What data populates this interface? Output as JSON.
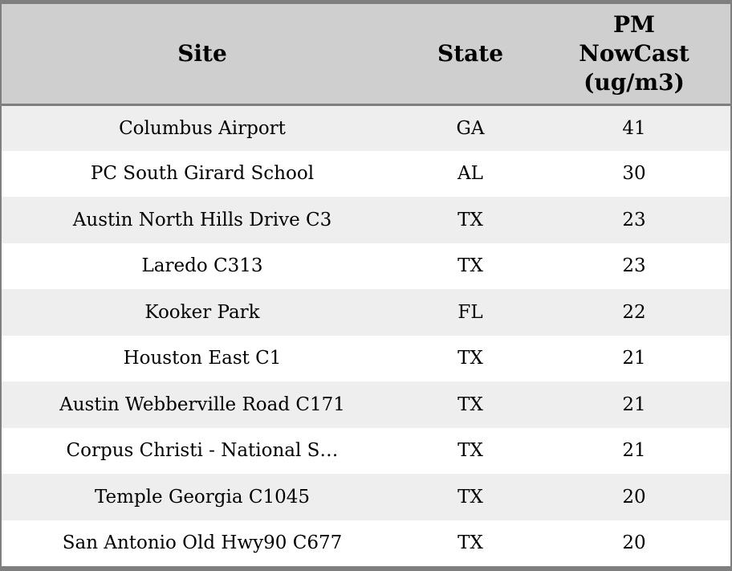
{
  "colors": {
    "border": "#7f7f7f",
    "header_bg": "#cfcfcf",
    "row_alt_bg": "#eeeeee",
    "row_bg": "#ffffff",
    "text": "#000000"
  },
  "table": {
    "columns": [
      {
        "id": "site",
        "label": "Site"
      },
      {
        "id": "state",
        "label": "State"
      },
      {
        "id": "pm_nowcast",
        "label": "PM\nNowCast\n(ug/m3)"
      }
    ],
    "rows": [
      {
        "site": "Columbus Airport",
        "state": "GA",
        "pm": "41"
      },
      {
        "site": "PC South Girard School",
        "state": "AL",
        "pm": "30"
      },
      {
        "site": "Austin North Hills Drive C3",
        "state": "TX",
        "pm": "23"
      },
      {
        "site": "Laredo C313",
        "state": "TX",
        "pm": "23"
      },
      {
        "site": "Kooker Park",
        "state": "FL",
        "pm": "22"
      },
      {
        "site": "Houston East C1",
        "state": "TX",
        "pm": "21"
      },
      {
        "site": "Austin Webberville Road C171",
        "state": "TX",
        "pm": "21"
      },
      {
        "site": "Corpus Christi - National S…",
        "state": "TX",
        "pm": "21"
      },
      {
        "site": "Temple Georgia C1045",
        "state": "TX",
        "pm": "20"
      },
      {
        "site": "San Antonio Old Hwy90 C677",
        "state": "TX",
        "pm": "20"
      }
    ]
  },
  "chart_data": {
    "type": "table",
    "title": "",
    "categories": [
      "Site",
      "State",
      "PM NowCast (ug/m3)"
    ],
    "series": [
      {
        "name": "PM NowCast (ug/m3)",
        "values": [
          41,
          30,
          23,
          23,
          22,
          21,
          21,
          21,
          20,
          20
        ]
      }
    ]
  }
}
